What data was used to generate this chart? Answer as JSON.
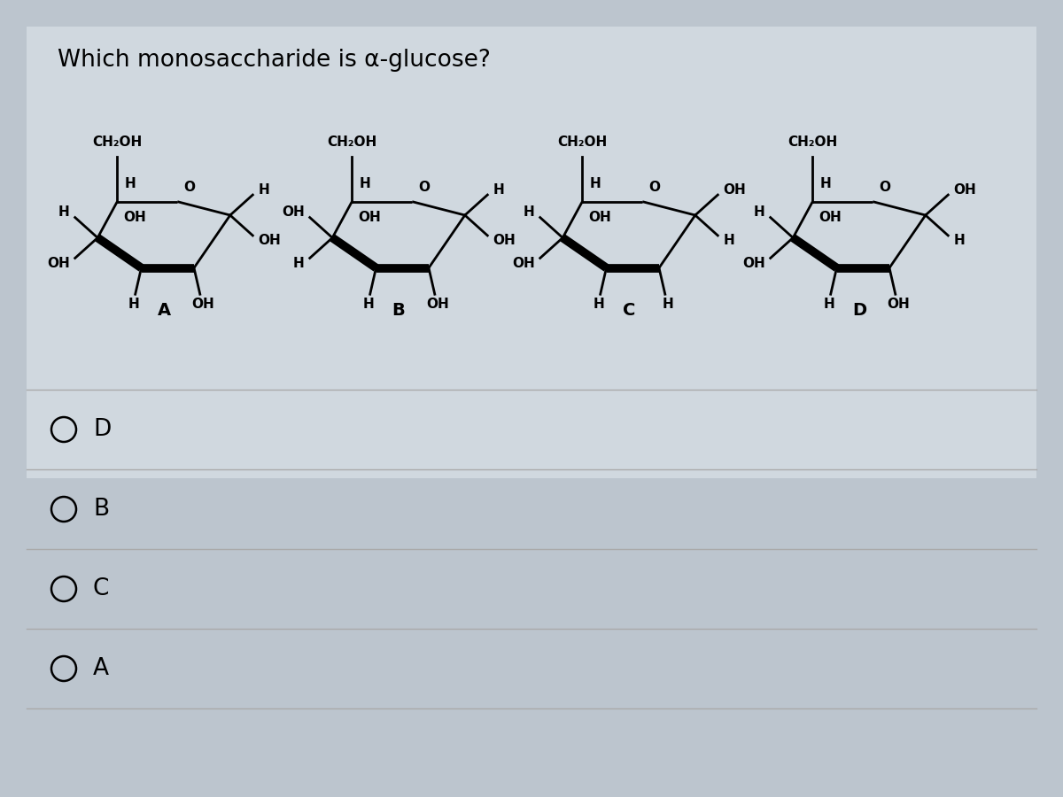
{
  "title": "Which monosaccharide is α-glucose?",
  "background_color": "#bcc5ce",
  "panel_color": "#cdd5dc",
  "choices": [
    "D",
    "B",
    "C",
    "A"
  ],
  "structures": {
    "A": {
      "left_top": "H",
      "left_inner_top": "H",
      "left_inner_bot": "OH",
      "left_bot": "OH",
      "right_top": "H",
      "right_bot": "OH",
      "bot_left": "H",
      "bot_right": "OH"
    },
    "B": {
      "left_top": "OH",
      "left_inner_top": "H",
      "left_inner_bot": "OH",
      "left_bot": "H",
      "right_top": "H",
      "right_bot": "OH",
      "bot_left": "H",
      "bot_right": "OH"
    },
    "C": {
      "left_top": "H",
      "left_inner_top": "H",
      "left_inner_bot": "OH",
      "left_bot": "OH",
      "right_top": "OH",
      "right_bot": "H",
      "bot_left": "H",
      "bot_right": "H"
    },
    "D": {
      "left_top": "H",
      "left_inner_top": "H",
      "left_inner_bot": "OH",
      "left_bot": "OH",
      "right_top": "OH",
      "right_bot": "H",
      "bot_left": "H",
      "bot_right": "OH"
    }
  }
}
